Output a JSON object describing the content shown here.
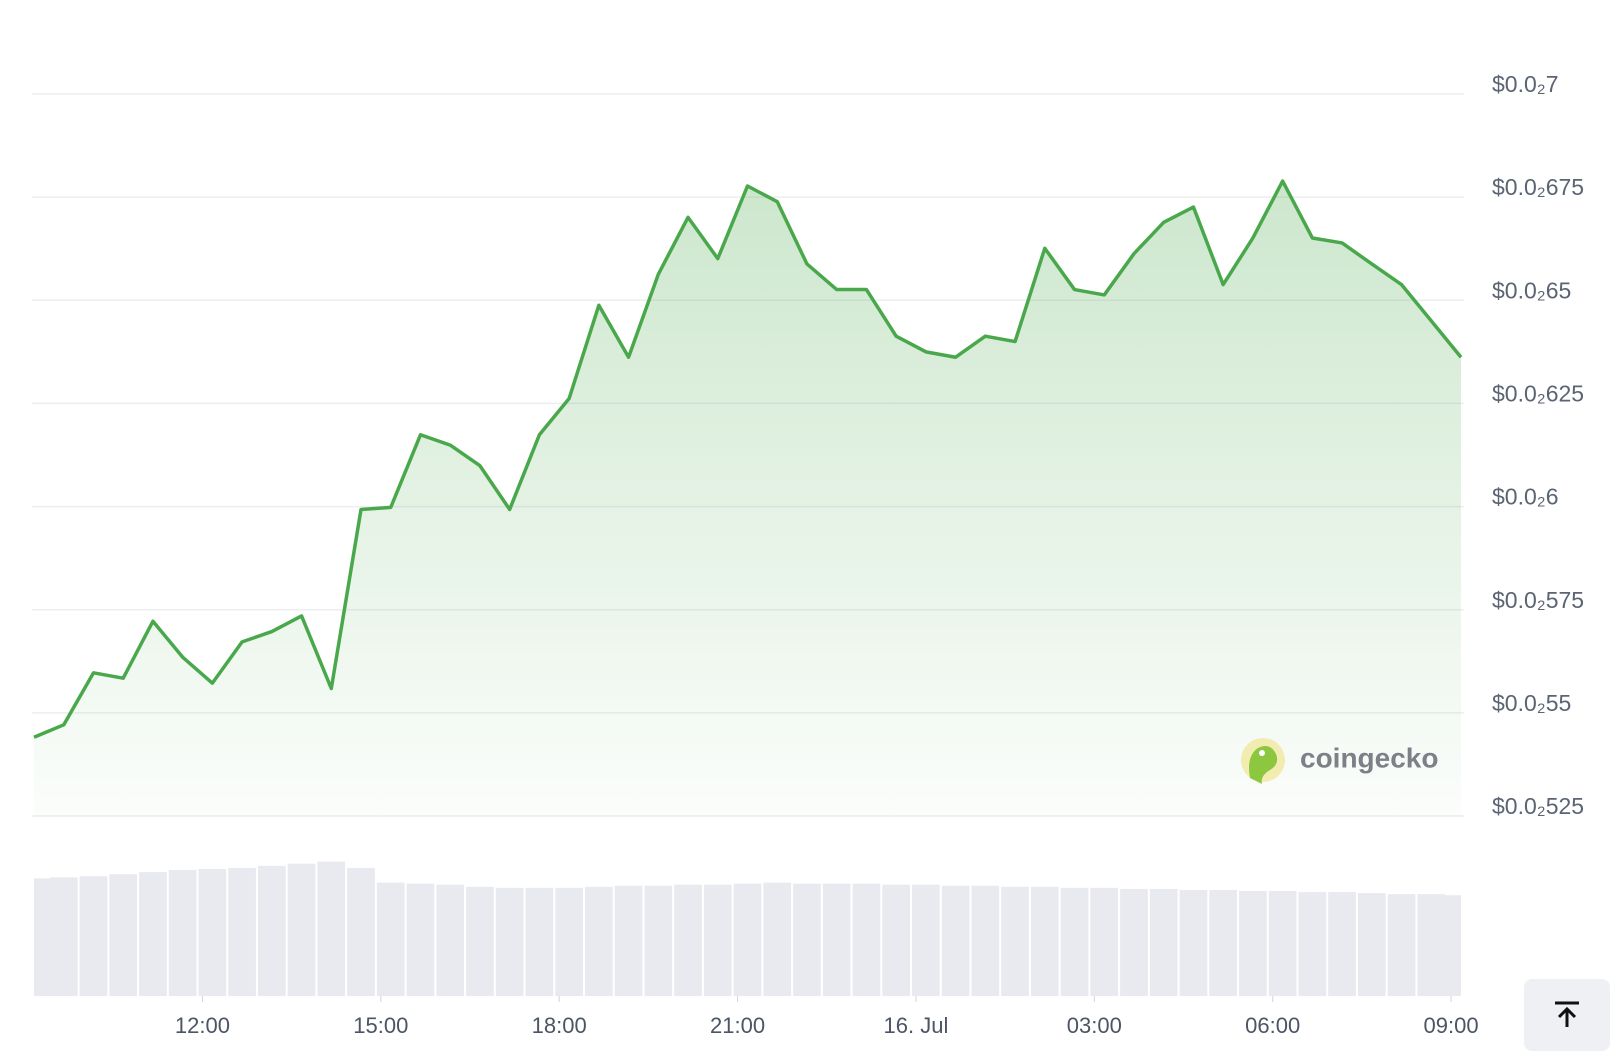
{
  "chart_data": {
    "type": "line",
    "watermark": "coingecko",
    "x": [
      "15 Jul 09:10",
      "15 Jul 09:40",
      "15 Jul 10:10",
      "15 Jul 10:40",
      "15 Jul 11:10",
      "15 Jul 11:40",
      "15 Jul 12:10",
      "15 Jul 12:40",
      "15 Jul 13:10",
      "15 Jul 13:40",
      "15 Jul 14:10",
      "15 Jul 14:40",
      "15 Jul 15:10",
      "15 Jul 15:40",
      "15 Jul 16:10",
      "15 Jul 16:40",
      "15 Jul 17:10",
      "15 Jul 17:40",
      "15 Jul 18:10",
      "15 Jul 18:40",
      "15 Jul 19:10",
      "15 Jul 19:40",
      "15 Jul 20:10",
      "15 Jul 20:40",
      "15 Jul 21:10",
      "15 Jul 21:40",
      "15 Jul 22:10",
      "15 Jul 22:40",
      "15 Jul 23:10",
      "15 Jul 23:40",
      "16 Jul 00:10",
      "16 Jul 00:40",
      "16 Jul 01:10",
      "16 Jul 01:40",
      "16 Jul 02:10",
      "16 Jul 02:40",
      "16 Jul 03:10",
      "16 Jul 03:40",
      "16 Jul 04:10",
      "16 Jul 04:40",
      "16 Jul 05:10",
      "16 Jul 05:40",
      "16 Jul 06:10",
      "16 Jul 06:40",
      "16 Jul 07:10",
      "16 Jul 07:40",
      "16 Jul 08:10",
      "16 Jul 08:40",
      "16 Jul 09:10"
    ],
    "series": [
      {
        "type": "area",
        "color": "#4aa84c",
        "values": [
          0.005441,
          0.005471,
          0.005597,
          0.005584,
          0.005722,
          0.005635,
          0.005572,
          0.005672,
          0.005697,
          0.005735,
          0.005559,
          0.005993,
          0.005998,
          0.006174,
          0.006149,
          0.006099,
          0.005993,
          0.006174,
          0.006262,
          0.006488,
          0.006362,
          0.006563,
          0.006701,
          0.006601,
          0.006777,
          0.006739,
          0.006588,
          0.006526,
          0.006526,
          0.006413,
          0.006375,
          0.006362,
          0.006413,
          0.0064,
          0.006626,
          0.006526,
          0.006513,
          0.006613,
          0.006689,
          0.006726,
          0.006538,
          0.006651,
          0.006789,
          0.006651,
          0.006639,
          0.006588,
          0.006538,
          0.00645,
          0.006362
        ]
      },
      {
        "type": "bar",
        "axis": "y2",
        "color": "#e9eaef",
        "values": [
          112,
          113,
          114,
          116,
          118,
          120,
          121,
          122,
          124,
          126,
          128,
          122,
          108,
          107,
          106,
          104,
          103,
          103,
          103,
          104,
          105,
          105,
          106,
          106,
          107,
          108,
          107,
          107,
          107,
          106,
          106,
          105,
          105,
          104,
          104,
          103,
          103,
          102,
          102,
          101,
          101,
          100,
          100,
          99,
          99,
          98,
          97,
          97,
          96
        ]
      }
    ],
    "ylim": [
      0.00525,
      0.007
    ],
    "yticks": [
      {
        "value": 0.00525,
        "label": "$0.0₂525"
      },
      {
        "value": 0.0055,
        "label": "$0.0₂55"
      },
      {
        "value": 0.00575,
        "label": "$0.0₂575"
      },
      {
        "value": 0.006,
        "label": "$0.0₂6"
      },
      {
        "value": 0.00625,
        "label": "$0.0₂625"
      },
      {
        "value": 0.0065,
        "label": "$0.0₂65"
      },
      {
        "value": 0.00675,
        "label": "$0.0₂675"
      },
      {
        "value": 0.007,
        "label": "$0.0₂7"
      }
    ],
    "y2lim": [
      0,
      200
    ],
    "xticks": [
      {
        "value": "15 Jul 12:00",
        "label": "12:00"
      },
      {
        "value": "15 Jul 15:00",
        "label": "15:00"
      },
      {
        "value": "15 Jul 18:00",
        "label": "18:00"
      },
      {
        "value": "15 Jul 21:00",
        "label": "21:00"
      },
      {
        "value": "16 Jul 00:00",
        "label": "16. Jul"
      },
      {
        "value": "16 Jul 03:00",
        "label": "03:00"
      },
      {
        "value": "16 Jul 06:00",
        "label": "06:00"
      },
      {
        "value": "16 Jul 09:00",
        "label": "09:00"
      }
    ],
    "grid": true
  }
}
